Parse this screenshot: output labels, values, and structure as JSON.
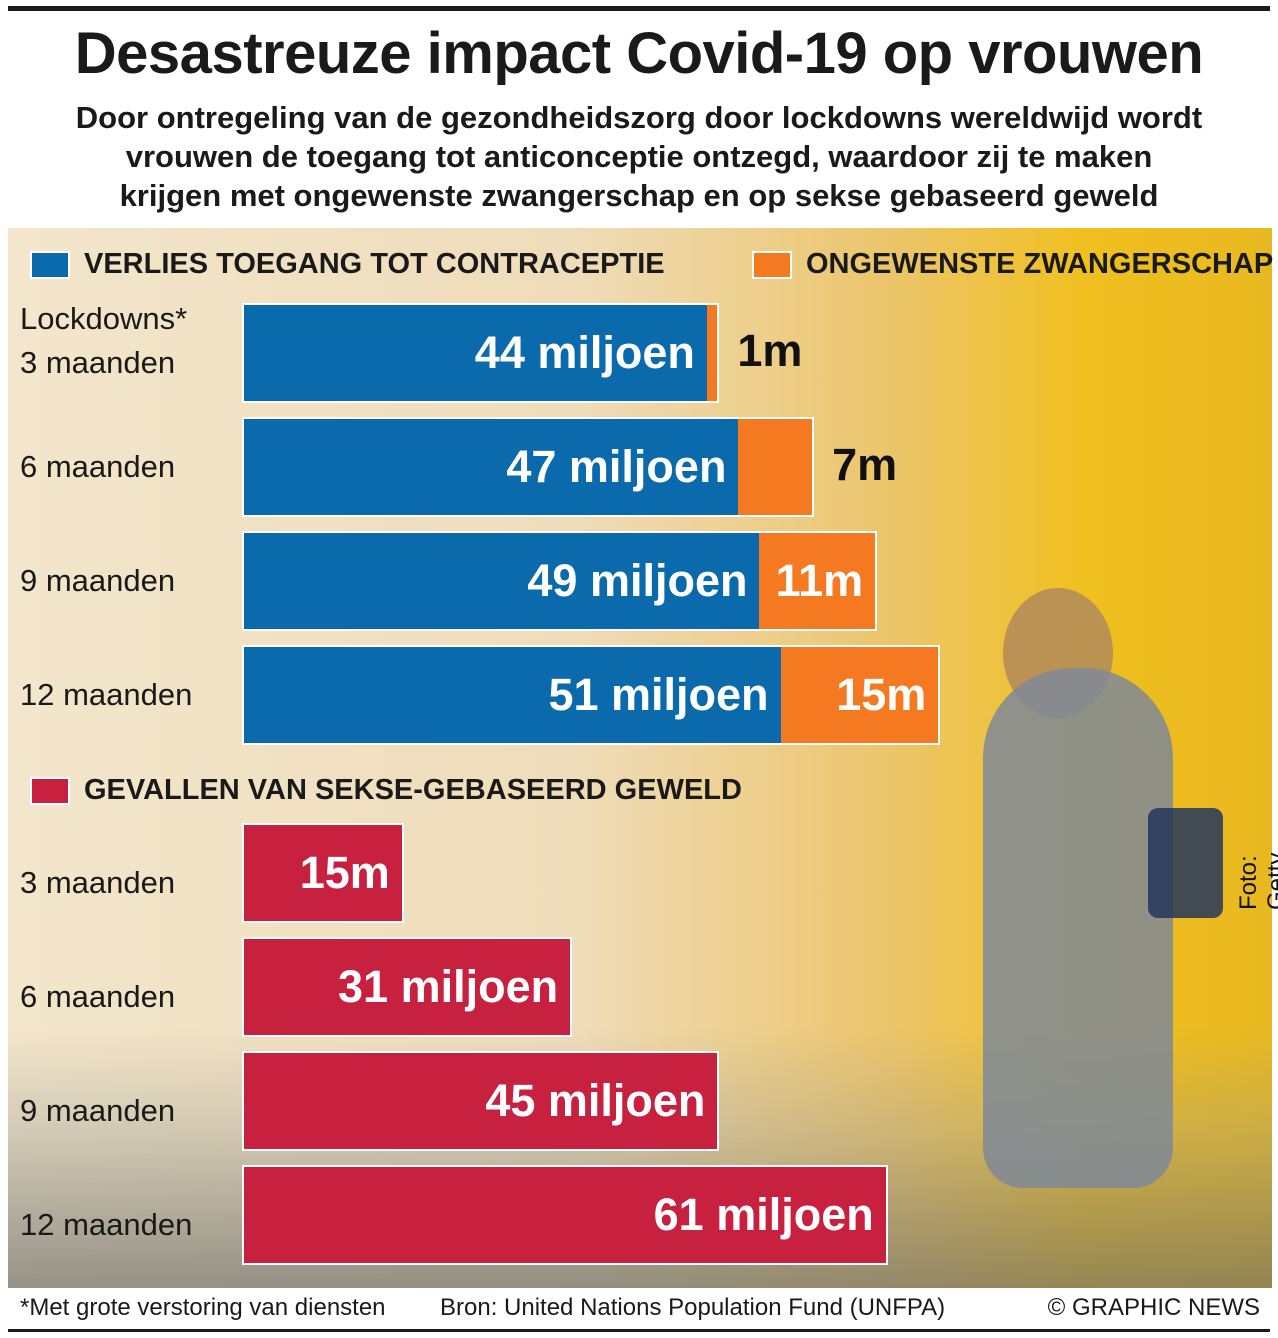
{
  "title": "Desastreuze impact Covid-19 op vrouwen",
  "subtitle": [
    "Door ontregeling van de gezondheidszorg door lockdowns wereldwijd wordt",
    "vrouwen de toegang tot anticonceptie ontzegd, waardoor zij te maken",
    "krijgen met ongewenste zwangerschap en op sekse gebaseerd geweld"
  ],
  "photo_credit": "Foto: Getty Images",
  "footer": {
    "note": "*Met grote verstoring van diensten",
    "source": "Bron: United Nations Population Fund (UNFPA)",
    "copyright": "© GRAPHIC NEWS"
  },
  "chart_data": [
    {
      "type": "bar",
      "orientation": "horizontal",
      "stacked": true,
      "categories": [
        "Lockdowns* 3 maanden",
        "6 maanden",
        "9 maanden",
        "12 maanden"
      ],
      "category_lines": [
        [
          "Lockdowns*",
          "3 maanden"
        ],
        [
          "6 maanden"
        ],
        [
          "9 maanden"
        ],
        [
          "12 maanden"
        ]
      ],
      "unit": "miljoen",
      "series": [
        {
          "name": "VERLIES TOEGANG TOT CONTRACEPTIE",
          "color": "#0a6aab",
          "values": [
            44,
            47,
            49,
            51
          ],
          "labels": [
            "44 miljoen",
            "47 miljoen",
            "49 miljoen",
            "51 miljoen"
          ]
        },
        {
          "name": "ONGEWENSTE ZWANGERSCHAP",
          "color": "#f47920",
          "values": [
            1,
            7,
            11,
            15
          ],
          "labels": [
            "1m",
            "7m",
            "11m",
            "15m"
          ]
        }
      ]
    },
    {
      "type": "bar",
      "orientation": "horizontal",
      "categories": [
        "3 maanden",
        "6 maanden",
        "9 maanden",
        "12 maanden"
      ],
      "unit": "miljoen",
      "series": [
        {
          "name": "GEVALLEN VAN SEKSE-GEBASEERD GEWELD",
          "color": "#c8203f",
          "values": [
            15,
            31,
            45,
            61
          ],
          "labels": [
            "15m",
            "31 miljoen",
            "45 miljoen",
            "61 miljoen"
          ]
        }
      ]
    }
  ]
}
